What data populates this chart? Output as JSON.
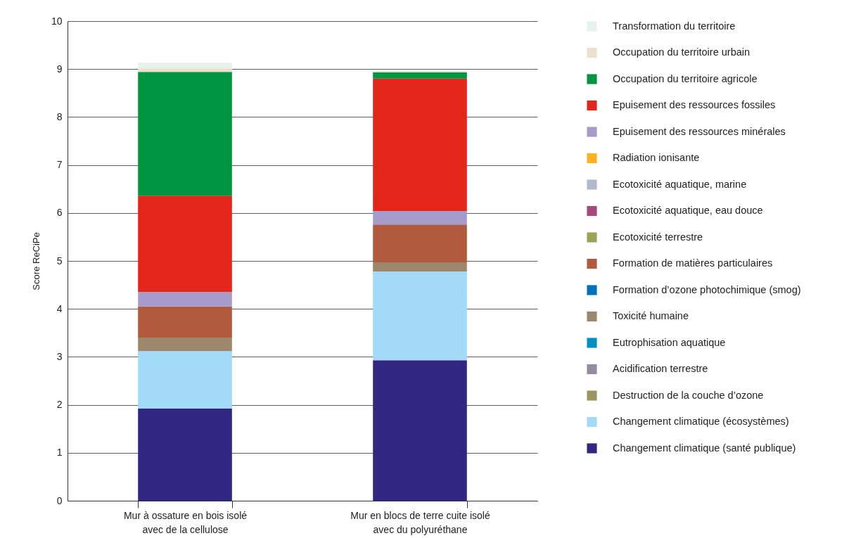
{
  "chart_data": {
    "type": "bar",
    "stacked": true,
    "ylabel": "Score ReCiPe",
    "categories": [
      "Mur à ossature en bois isolé\navec de la cellulose",
      "Mur en blocs de terre cuite isolé\navec du polyuréthane"
    ],
    "ylim": [
      0,
      10
    ],
    "yticks": [
      0,
      1,
      2,
      3,
      4,
      5,
      6,
      7,
      8,
      9,
      10
    ],
    "grid": "y",
    "legend": "right",
    "series": [
      {
        "name": "Changement climatique (santé publique)",
        "color": "#312783",
        "values": [
          1.92,
          2.93
        ]
      },
      {
        "name": "Changement climatique (écosystèmes)",
        "color": "#a2daf7",
        "values": [
          1.2,
          1.85
        ]
      },
      {
        "name": "Destruction de la couche d’ozone",
        "color": "#9c9560",
        "values": [
          0,
          0
        ]
      },
      {
        "name": "Acidification terrestre",
        "color": "#938b9e",
        "values": [
          0,
          0
        ]
      },
      {
        "name": "Eutrophisation aquatique",
        "color": "#0090c4",
        "values": [
          0,
          0
        ]
      },
      {
        "name": "Toxicité humaine",
        "color": "#9c876c",
        "values": [
          0.28,
          0.19
        ]
      },
      {
        "name": "Formation d’ozone photochimique (smog)",
        "color": "#0072bc",
        "values": [
          0,
          0
        ]
      },
      {
        "name": "Formation de matières particulaires",
        "color": "#b15a3e",
        "values": [
          0.65,
          0.79
        ]
      },
      {
        "name": "Ecotoxicité terrestre",
        "color": "#99a457",
        "values": [
          0,
          0
        ]
      },
      {
        "name": "Ecotoxicité aquatique, eau douce",
        "color": "#a7467f",
        "values": [
          0,
          0
        ]
      },
      {
        "name": "Ecotoxicité aquatique, marine",
        "color": "#b2b9cd",
        "values": [
          0,
          0
        ]
      },
      {
        "name": "Radiation ionisante",
        "color": "#fab124",
        "values": [
          0,
          0
        ]
      },
      {
        "name": "Epuisement des ressources minérales",
        "color": "#a59ccb",
        "values": [
          0.3,
          0.28
        ]
      },
      {
        "name": "Epuisement des ressources fossiles",
        "color": "#e32619",
        "values": [
          2.01,
          2.76
        ]
      },
      {
        "name": "Occupation du territoire agricole",
        "color": "#009540",
        "values": [
          2.58,
          0.13
        ]
      },
      {
        "name": "Occupation du territoire urbain",
        "color": "#ecdfcd",
        "values": [
          0.07,
          0.03
        ]
      },
      {
        "name": "Transformation du territoire",
        "color": "#e7f2ea",
        "values": [
          0.12,
          0
        ]
      }
    ]
  }
}
